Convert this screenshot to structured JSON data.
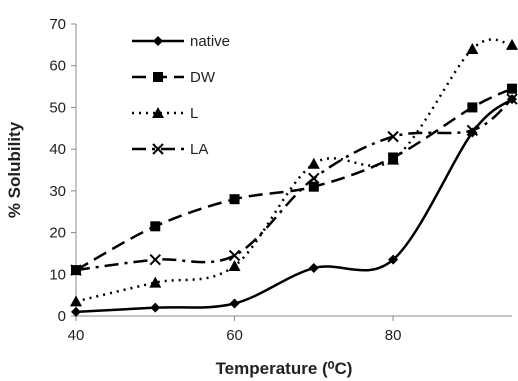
{
  "chart_data": {
    "type": "line",
    "title": "",
    "xlabel": "Temperature (⁰C)",
    "ylabel": "% Solubility",
    "xlim": [
      40,
      95
    ],
    "ylim": [
      0,
      70
    ],
    "x_ticks": [
      40,
      60,
      80
    ],
    "y_ticks": [
      0,
      10,
      20,
      30,
      40,
      50,
      60,
      70
    ],
    "grid": false,
    "legend_position": "top-left",
    "x": [
      40,
      50,
      60,
      70,
      80,
      90,
      95
    ],
    "series": [
      {
        "name": "native",
        "marker": "diamond",
        "dash": "solid",
        "color": "#000000",
        "values": [
          1,
          2,
          3,
          11.5,
          13.5,
          44,
          52
        ]
      },
      {
        "name": "DW",
        "marker": "square",
        "dash": "dash",
        "color": "#000000",
        "values": [
          11,
          21.5,
          28,
          31,
          38,
          50,
          54.5
        ]
      },
      {
        "name": "L",
        "marker": "triangle",
        "dash": "dot",
        "color": "#000000",
        "values": [
          3.5,
          8,
          12,
          36.5,
          37.5,
          64,
          65
        ]
      },
      {
        "name": "LA",
        "marker": "x",
        "dash": "dashdot",
        "color": "#000000",
        "values": [
          11,
          13.5,
          14.5,
          33,
          43,
          44.5,
          52
        ]
      }
    ]
  }
}
